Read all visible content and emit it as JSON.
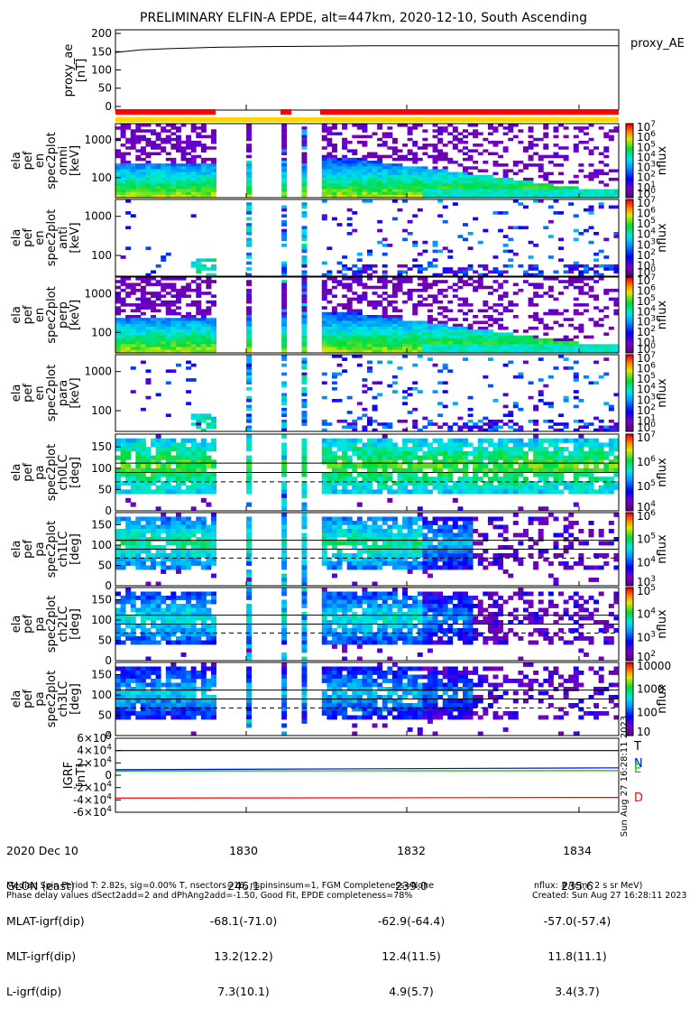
{
  "title": "PRELIMINARY ELFIN-A EPDE, alt=447km, 2020-12-10, South Ascending",
  "colors": {
    "proxy_line": "#000000",
    "sci_bar": "#ff0000",
    "orbit_bar": "#ffd700",
    "igrf_T": "#000000",
    "igrf_N": "#0000ff",
    "igrf_E": "#00c000",
    "igrf_D": "#ff0000"
  },
  "chart_data": [
    {
      "type": "line",
      "id": "proxy_ae",
      "ylabel": "proxy_ae [nT]",
      "legend": "proxy_AE",
      "ylim": [
        -10,
        210
      ],
      "yticks": [
        "200",
        "150",
        "100",
        "50",
        "0"
      ],
      "x": [
        0,
        0.05,
        0.1,
        0.2,
        0.3,
        0.5,
        0.7,
        1.0
      ],
      "y": [
        148,
        155,
        158,
        162,
        164,
        166,
        166,
        166
      ]
    },
    {
      "type": "heatmap",
      "id": "en-omni",
      "ylabel": [
        "ela",
        "pef",
        "en",
        "spec2plot",
        "omni",
        "[keV]"
      ],
      "yticks": [
        "1000",
        "100"
      ],
      "colorbar": "nflux",
      "cbticks": [
        "10^7",
        "10^6",
        "10^5",
        "10^4",
        "10^3",
        "10^2",
        "10^1",
        "10^0"
      ]
    },
    {
      "type": "heatmap",
      "id": "en-anti",
      "ylabel": [
        "ela",
        "pef",
        "en",
        "spec2plot",
        "anti",
        "[keV]"
      ],
      "yticks": [
        "1000",
        "100"
      ],
      "colorbar": "nflux",
      "cbticks": [
        "10^7",
        "10^6",
        "10^5",
        "10^4",
        "10^3",
        "10^2",
        "10^1",
        "10^0"
      ]
    },
    {
      "type": "heatmap",
      "id": "en-perp",
      "ylabel": [
        "ela",
        "pef",
        "en",
        "spec2plot",
        "perp",
        "[keV]"
      ],
      "yticks": [
        "1000",
        "100"
      ],
      "colorbar": "nflux",
      "cbticks": [
        "10^7",
        "10^6",
        "10^5",
        "10^4",
        "10^3",
        "10^2",
        "10^1",
        "10^0"
      ]
    },
    {
      "type": "heatmap",
      "id": "en-para",
      "ylabel": [
        "ela",
        "pef",
        "en",
        "spec2plot",
        "para",
        "[keV]"
      ],
      "yticks": [
        "1000",
        "100"
      ],
      "colorbar": "nflux",
      "cbticks": [
        "10^7",
        "10^6",
        "10^5",
        "10^4",
        "10^3",
        "10^2",
        "10^1",
        "10^0"
      ]
    },
    {
      "type": "heatmap",
      "id": "pa-ch0",
      "ylabel": [
        "ela",
        "pef",
        "pa",
        "spec2plot",
        "ch0LC",
        "[deg]"
      ],
      "yticks": [
        "150",
        "100",
        "50",
        "0"
      ],
      "colorbar": "nflux",
      "cbticks": [
        "10^7",
        "10^6",
        "10^5",
        "10^4"
      ]
    },
    {
      "type": "heatmap",
      "id": "pa-ch1",
      "ylabel": [
        "ela",
        "pef",
        "pa",
        "spec2plot",
        "ch1LC",
        "[deg]"
      ],
      "yticks": [
        "150",
        "100",
        "50",
        "0"
      ],
      "colorbar": "nflux",
      "cbticks": [
        "10^6",
        "10^5",
        "10^4",
        "10^3"
      ]
    },
    {
      "type": "heatmap",
      "id": "pa-ch2",
      "ylabel": [
        "ela",
        "pef",
        "pa",
        "spec2plot",
        "ch2LC",
        "[deg]"
      ],
      "yticks": [
        "150",
        "100",
        "50",
        "0"
      ],
      "colorbar": "nflux",
      "cbticks": [
        "10^5",
        "10^4",
        "10^3",
        "10^2"
      ]
    },
    {
      "type": "heatmap",
      "id": "pa-ch3",
      "ylabel": [
        "ela",
        "pef",
        "pa",
        "spec2plot",
        "ch3LC",
        "[deg]"
      ],
      "yticks": [
        "150",
        "100",
        "50",
        "0"
      ],
      "colorbar": "nflux",
      "cbticks": [
        "10000",
        "1000",
        "100",
        "10"
      ]
    },
    {
      "type": "line",
      "id": "igrf",
      "ylabel": "IGRF [nT]",
      "ylim": [
        -60000,
        60000
      ],
      "yticks": [
        "6×10^4",
        "4×10^4",
        "2×10^4",
        "0",
        "-2×10^4",
        "-4×10^4",
        "-6×10^4"
      ],
      "series": [
        {
          "name": "T",
          "values": [
            40000,
            40000
          ]
        },
        {
          "name": "N",
          "values": [
            9000,
            12000
          ]
        },
        {
          "name": "E",
          "values": [
            7000,
            7500
          ]
        },
        {
          "name": "D",
          "values": [
            -37000,
            -36000
          ]
        }
      ],
      "side_text": "Sun Aug 27 16:28:11 2023"
    }
  ],
  "xaxis": {
    "ticks": [
      "1830",
      "1832",
      "1834"
    ]
  },
  "ephemeris": {
    "row_labels": [
      "2020 Dec 10",
      "GLON (east)",
      "MLAT-igrf(dip)",
      "MLT-igrf(dip)",
      "L-igrf(dip)"
    ],
    "col1": [
      "1830",
      "246.1",
      "-68.1(-71.0)",
      "13.2(12.2)",
      "7.3(10.1)"
    ],
    "col2": [
      "1832",
      "239.0",
      "-62.9(-64.4)",
      "12.4(11.5)",
      "4.9(5.7)"
    ],
    "col3": [
      "1834",
      "235.6",
      "-57.0(-57.4)",
      "11.8(11.1)",
      "3.4(3.7)"
    ]
  },
  "footer": {
    "line1": "Median Spin Period T: 2.82s, sig=0.00% T, nsectors=16, nspinsinsum=1, FGM Completeness=None",
    "line2": "Phase delay values dSect2add=2 and dPhAng2add=-1.50, Good Fit, EPDE completeness=78%",
    "units": "nflux: #/(cm^2 s sr MeV)",
    "created": "Created: Sun Aug 27 16:28:11 2023"
  }
}
